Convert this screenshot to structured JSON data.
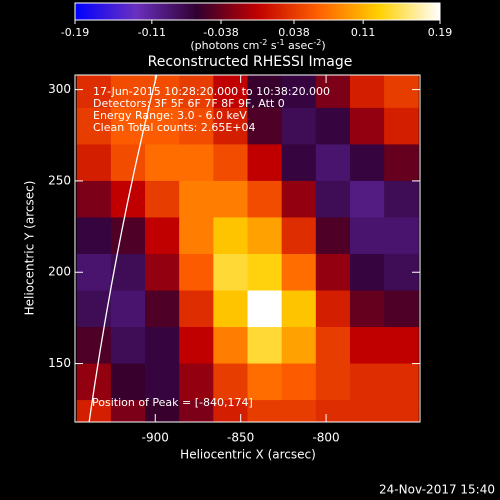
{
  "chart_data": {
    "type": "heatmap",
    "title": "Reconstructed RHESSI Image",
    "xlabel": "Heliocentric X (arcsec)",
    "ylabel": "Heliocentric Y (arcsec)",
    "colorbar_label": [
      "(photons cm",
      "-2",
      " s",
      "-1",
      " asec",
      "-2",
      ")"
    ],
    "annotations": [
      "17-Jun-2015 10:28:20.000 to 10:38:20.000",
      "Detectors: 3F 5F 6F 7F 8F 9F, Att 0",
      "Energy Range: 3.0 - 6.0 keV",
      "Clean     Total counts: 2.65E+04"
    ],
    "peak_label": "Position of Peak = [-840,174]",
    "date_label": "24-Nov-2017 15:40",
    "xlim": [
      -947,
      -745
    ],
    "ylim": [
      118,
      308
    ],
    "xticks": [
      -900,
      -850,
      -800
    ],
    "yticks": [
      150,
      200,
      250,
      300
    ],
    "zlim": [
      -0.19,
      0.19
    ],
    "zticks": [
      -0.19,
      -0.11,
      -0.038,
      0.038,
      0.11,
      0.19
    ],
    "colormap": [
      "#0000ff",
      "#6a30c0",
      "#300030",
      "#c00000",
      "#ff6000",
      "#ffd000",
      "#ffffff"
    ],
    "x": [
      -936,
      -916,
      -896,
      -876,
      -856,
      -836,
      -816,
      -796,
      -776,
      -756
    ],
    "y": [
      300,
      280,
      260,
      240,
      220,
      200,
      180,
      160,
      140,
      120
    ],
    "z": [
      [
        0.03,
        0.05,
        0.05,
        0.04,
        0.0,
        -0.06,
        -0.07,
        -0.03,
        0.02,
        0.04
      ],
      [
        0.04,
        0.06,
        0.06,
        0.05,
        0.02,
        -0.05,
        -0.08,
        -0.07,
        -0.02,
        0.02
      ],
      [
        0.02,
        0.05,
        0.07,
        0.07,
        0.05,
        0.0,
        -0.07,
        -0.09,
        -0.07,
        -0.04
      ],
      [
        -0.03,
        0.0,
        0.04,
        0.08,
        0.08,
        0.05,
        -0.02,
        -0.08,
        -0.1,
        -0.08
      ],
      [
        -0.07,
        -0.05,
        0.0,
        0.08,
        0.12,
        0.1,
        0.03,
        -0.05,
        -0.09,
        -0.09
      ],
      [
        -0.09,
        -0.08,
        -0.02,
        0.06,
        0.14,
        0.13,
        0.07,
        -0.02,
        -0.07,
        -0.08
      ],
      [
        -0.08,
        -0.09,
        -0.05,
        0.03,
        0.12,
        0.19,
        0.12,
        0.02,
        -0.04,
        -0.05
      ],
      [
        -0.05,
        -0.08,
        -0.07,
        0.0,
        0.08,
        0.14,
        0.1,
        0.04,
        0.0,
        0.0
      ],
      [
        -0.02,
        -0.06,
        -0.07,
        -0.02,
        0.04,
        0.07,
        0.06,
        0.04,
        0.03,
        0.03
      ],
      [
        0.02,
        -0.03,
        -0.06,
        -0.03,
        0.02,
        0.04,
        0.04,
        0.03,
        0.03,
        0.03
      ]
    ]
  }
}
